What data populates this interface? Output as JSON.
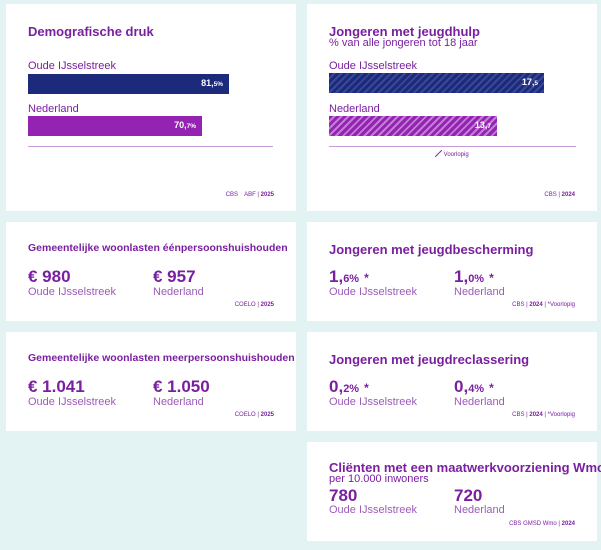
{
  "colors": {
    "navy": "#1c2a7c",
    "purple": "#9323b0",
    "text": "#7a1fa0",
    "background": "#e3f3f4"
  },
  "demografische_druk": {
    "title": "Demografische druk",
    "rows": [
      {
        "label": "Oude IJsselstreek",
        "value_main": "81,",
        "value_sub": "5%",
        "value": 81.5,
        "color": "#1c2a7c"
      },
      {
        "label": "Nederland",
        "value_main": "70,",
        "value_sub": "7%",
        "value": 70.7,
        "color": "#9323b0"
      }
    ],
    "source": {
      "org": "CBS",
      "org2": "ABF",
      "year": "2025"
    }
  },
  "jeugdhulp": {
    "title": "Jongeren met jeugdhulp",
    "subtitle": "% van alle jongeren tot 18 jaar",
    "rows": [
      {
        "label": "Oude IJsselstreek",
        "value_main": "17,",
        "value_sub": "5",
        "value": 17.5
      },
      {
        "label": "Nederland",
        "value_main": "13,",
        "value_sub": "7",
        "value": 13.7
      }
    ],
    "note_icon": "hatch-icon",
    "note": "Voorlopig",
    "source": {
      "org": "CBS",
      "year": "2024"
    }
  },
  "woonlasten_een": {
    "title": "Gemeentelijke woonlasten éénpersoonshuishouden",
    "left_value": "€ 980",
    "left_label": "Oude IJsselstreek",
    "right_value": "€ 957",
    "right_label": "Nederland",
    "source": {
      "org": "COELO",
      "year": "2025"
    }
  },
  "jeugdbescherming": {
    "title": "Jongeren met jeugdbescherming",
    "left_main": "1,",
    "left_sub": "6%",
    "left_ast": "*",
    "left_label": "Oude IJsselstreek",
    "right_main": "1,",
    "right_sub": "0%",
    "right_ast": "*",
    "right_label": "Nederland",
    "source": {
      "org": "CBS",
      "year": "2024",
      "note": "*Voorlopig"
    }
  },
  "woonlasten_meer": {
    "title": "Gemeentelijke woonlasten meerpersoonshuishouden",
    "left_value": "€ 1.041",
    "left_label": "Oude IJsselstreek",
    "right_value": "€ 1.050",
    "right_label": "Nederland",
    "source": {
      "org": "COELO",
      "year": "2025"
    }
  },
  "jeugdreclassering": {
    "title": "Jongeren met jeugdreclassering",
    "left_main": "0,",
    "left_sub": "2%",
    "left_ast": "*",
    "left_label": "Oude IJsselstreek",
    "right_main": "0,",
    "right_sub": "4%",
    "right_ast": "*",
    "right_label": "Nederland",
    "source": {
      "org": "CBS",
      "year": "2024",
      "note": "*Voorlopig"
    }
  },
  "wmo": {
    "title": "Cliënten met een maatwerkvoorziening Wmo",
    "subtitle": "per 10.000 inwoners",
    "left_value": "780",
    "left_label": "Oude IJsselstreek",
    "right_value": "720",
    "right_label": "Nederland",
    "source": {
      "org": "CBS GMSD Wmo",
      "year": "2024"
    }
  }
}
